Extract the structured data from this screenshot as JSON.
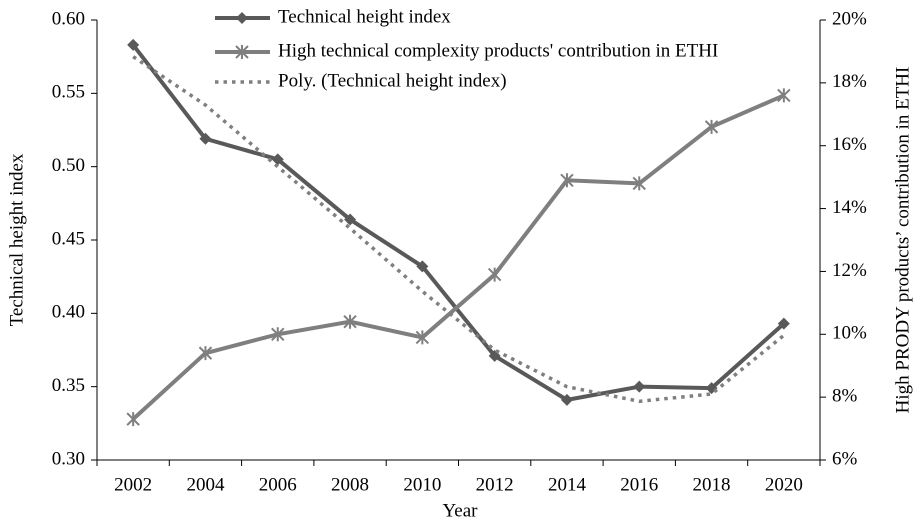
{
  "chart_data": {
    "type": "line",
    "xlabel": "Year",
    "ylabel": "Technical height index",
    "y2label": "High PRODY products’ contribution in ETHI",
    "categories": [
      "2002",
      "2004",
      "2006",
      "2008",
      "2010",
      "2012",
      "2014",
      "2016",
      "2018",
      "2020"
    ],
    "series": [
      {
        "name": "Technical height index",
        "color": "#595959",
        "marker": "diamond",
        "style": "solid",
        "values": [
          0.583,
          0.519,
          0.505,
          0.464,
          0.432,
          0.371,
          0.341,
          0.35,
          0.349,
          0.393
        ]
      },
      {
        "name": "High technical complexity products' contribution in ETHI",
        "color": "#7f7f7f",
        "marker": "star",
        "style": "solid",
        "axis": "y2",
        "values": [
          7.3,
          9.4,
          10.0,
          10.4,
          9.9,
          11.9,
          14.9,
          14.8,
          16.6,
          17.6
        ]
      },
      {
        "name": "Poly. (Technical height index)",
        "color": "#7f7f7f",
        "marker": "none",
        "style": "dotted",
        "values": [
          0.575,
          0.542,
          0.5,
          0.458,
          0.415,
          0.375,
          0.35,
          0.34,
          0.345,
          0.385
        ]
      }
    ],
    "ylim": [
      0.3,
      0.6
    ],
    "yticks": [
      {
        "value": 0.3,
        "label": "0.30"
      },
      {
        "value": 0.35,
        "label": "0.35"
      },
      {
        "value": 0.4,
        "label": "0.40"
      },
      {
        "value": 0.45,
        "label": "0.45"
      },
      {
        "value": 0.5,
        "label": "0.50"
      },
      {
        "value": 0.55,
        "label": "0.55"
      },
      {
        "value": 0.6,
        "label": "0.60"
      }
    ],
    "y2lim": [
      6,
      20
    ],
    "y2ticks": [
      {
        "value": 6,
        "label": "6%"
      },
      {
        "value": 8,
        "label": "8%"
      },
      {
        "value": 10,
        "label": "10%"
      },
      {
        "value": 12,
        "label": "12%"
      },
      {
        "value": 14,
        "label": "14%"
      },
      {
        "value": 16,
        "label": "16%"
      },
      {
        "value": 18,
        "label": "18%"
      },
      {
        "value": 20,
        "label": "20%"
      }
    ],
    "grid": false,
    "legend": "top"
  }
}
